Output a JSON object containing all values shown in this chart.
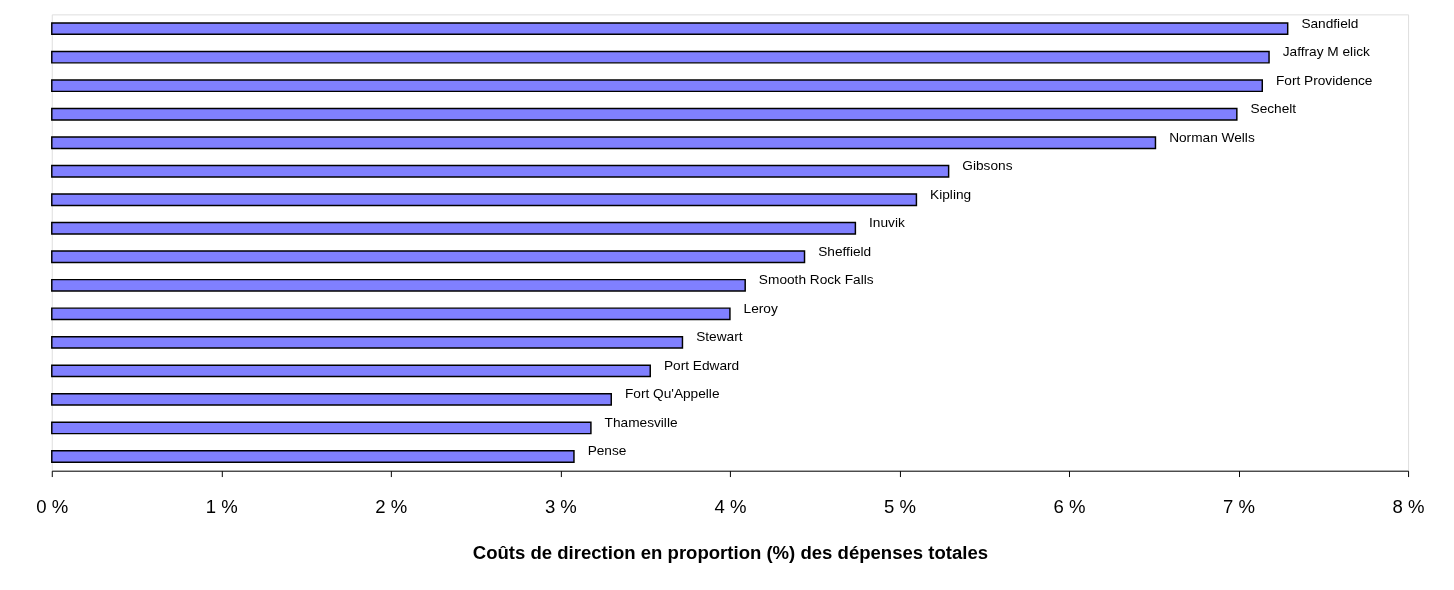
{
  "chart_data": {
    "type": "bar",
    "orientation": "horizontal",
    "xlabel": "Coûts de direction en proportion (%) des dépenses totales",
    "categories": [
      "Sandfield",
      "Jaffray M elick",
      "Fort Providence",
      "Sechelt",
      "Norman Wells",
      "Gibsons",
      "Kipling",
      "Inuvik",
      "Sheffield",
      "Smooth Rock Falls",
      "Leroy",
      "Stewart",
      "Port Edward",
      "Fort Qu'Appelle",
      "Thamesville",
      "Pense"
    ],
    "values": [
      7.29,
      7.18,
      7.14,
      6.99,
      6.51,
      5.29,
      5.1,
      4.74,
      4.44,
      4.09,
      4.0,
      3.72,
      3.53,
      3.3,
      3.18,
      3.08
    ],
    "color": "#8080ff",
    "xlim": [
      0,
      8
    ],
    "xticks": [
      {
        "value": 0,
        "label": "0 %"
      },
      {
        "value": 1,
        "label": "1 %"
      },
      {
        "value": 2,
        "label": "2 %"
      },
      {
        "value": 3,
        "label": "3 %"
      },
      {
        "value": 4,
        "label": "4 %"
      },
      {
        "value": 5,
        "label": "5 %"
      },
      {
        "value": 6,
        "label": "6 %"
      },
      {
        "value": 7,
        "label": "7 %"
      },
      {
        "value": 8,
        "label": "8 %"
      }
    ],
    "grid": false,
    "tick_labels": "x"
  }
}
